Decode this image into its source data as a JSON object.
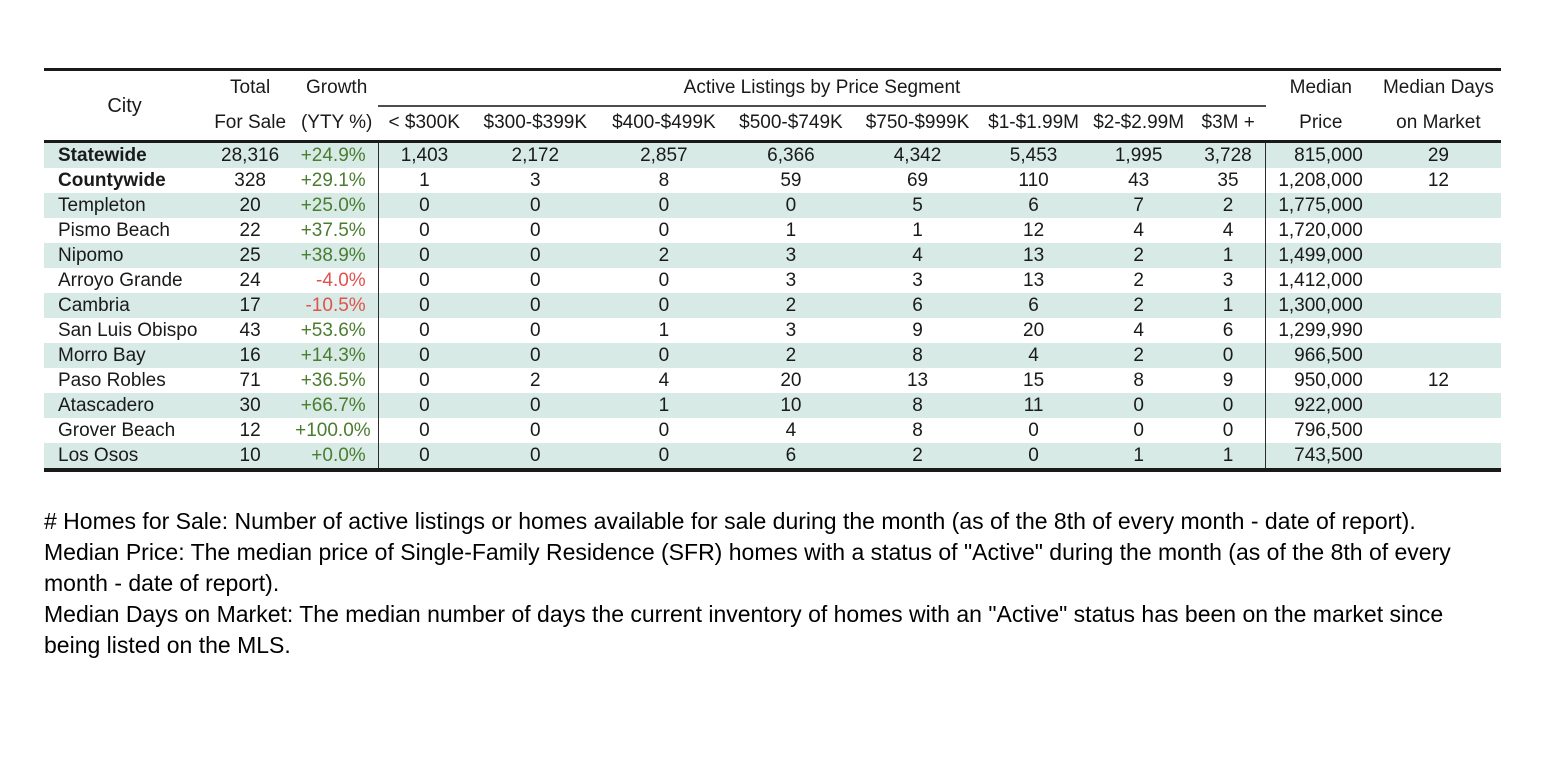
{
  "table": {
    "group_header": "Active Listings by Price Segment",
    "col_city": "City",
    "col_total_line1": "Total",
    "col_total_line2": "For Sale",
    "col_growth_line1": "Growth",
    "col_growth_line2": "(YTY %)",
    "price_segments": [
      "< $300K",
      "$300-$399K",
      "$400-$499K",
      "$500-$749K",
      "$750-$999K",
      "$1-$1.99M",
      "$2-$2.99M",
      "$3M +"
    ],
    "col_median_line1": "Median",
    "col_median_line2": "Price",
    "col_days_line1": "Median Days",
    "col_days_line2": "on Market",
    "rows": [
      {
        "city": "Statewide",
        "bold": true,
        "total": "28,316",
        "growth": "+24.9%",
        "segments": [
          "1,403",
          "2,172",
          "2,857",
          "6,366",
          "4,342",
          "5,453",
          "1,995",
          "3,728"
        ],
        "median_price": "815,000",
        "median_days": "29"
      },
      {
        "city": "Countywide",
        "bold": true,
        "total": "328",
        "growth": "+29.1%",
        "segments": [
          "1",
          "3",
          "8",
          "59",
          "69",
          "110",
          "43",
          "35"
        ],
        "median_price": "1,208,000",
        "median_days": "12"
      },
      {
        "city": "Templeton",
        "bold": false,
        "total": "20",
        "growth": "+25.0%",
        "segments": [
          "0",
          "0",
          "0",
          "0",
          "5",
          "6",
          "7",
          "2"
        ],
        "median_price": "1,775,000",
        "median_days": ""
      },
      {
        "city": "Pismo Beach",
        "bold": false,
        "total": "22",
        "growth": "+37.5%",
        "segments": [
          "0",
          "0",
          "0",
          "1",
          "1",
          "12",
          "4",
          "4"
        ],
        "median_price": "1,720,000",
        "median_days": ""
      },
      {
        "city": "Nipomo",
        "bold": false,
        "total": "25",
        "growth": "+38.9%",
        "segments": [
          "0",
          "0",
          "2",
          "3",
          "4",
          "13",
          "2",
          "1"
        ],
        "median_price": "1,499,000",
        "median_days": ""
      },
      {
        "city": "Arroyo Grande",
        "bold": false,
        "total": "24",
        "growth": "-4.0%",
        "segments": [
          "0",
          "0",
          "0",
          "3",
          "3",
          "13",
          "2",
          "3"
        ],
        "median_price": "1,412,000",
        "median_days": ""
      },
      {
        "city": "Cambria",
        "bold": false,
        "total": "17",
        "growth": "-10.5%",
        "segments": [
          "0",
          "0",
          "0",
          "2",
          "6",
          "6",
          "2",
          "1"
        ],
        "median_price": "1,300,000",
        "median_days": ""
      },
      {
        "city": "San Luis Obispo",
        "bold": false,
        "total": "43",
        "growth": "+53.6%",
        "segments": [
          "0",
          "0",
          "1",
          "3",
          "9",
          "20",
          "4",
          "6"
        ],
        "median_price": "1,299,990",
        "median_days": ""
      },
      {
        "city": "Morro Bay",
        "bold": false,
        "total": "16",
        "growth": "+14.3%",
        "segments": [
          "0",
          "0",
          "0",
          "2",
          "8",
          "4",
          "2",
          "0"
        ],
        "median_price": "966,500",
        "median_days": ""
      },
      {
        "city": "Paso Robles",
        "bold": false,
        "total": "71",
        "growth": "+36.5%",
        "segments": [
          "0",
          "2",
          "4",
          "20",
          "13",
          "15",
          "8",
          "9"
        ],
        "median_price": "950,000",
        "median_days": "12"
      },
      {
        "city": "Atascadero",
        "bold": false,
        "total": "30",
        "growth": "+66.7%",
        "segments": [
          "0",
          "0",
          "1",
          "10",
          "8",
          "11",
          "0",
          "0"
        ],
        "median_price": "922,000",
        "median_days": ""
      },
      {
        "city": "Grover Beach",
        "bold": false,
        "total": "12",
        "growth": "+100.0%",
        "segments": [
          "0",
          "0",
          "0",
          "4",
          "8",
          "0",
          "0",
          "0"
        ],
        "median_price": "796,500",
        "median_days": ""
      },
      {
        "city": "Los Osos",
        "bold": false,
        "total": "10",
        "growth": "+0.0%",
        "segments": [
          "0",
          "0",
          "0",
          "6",
          "2",
          "0",
          "1",
          "1"
        ],
        "median_price": "743,500",
        "median_days": ""
      }
    ]
  },
  "footnotes": [
    "# Homes for Sale: Number of active listings or homes available for sale during the month (as of the 8th of every month - date of report).",
    "Median Price: The median price of Single-Family Residence (SFR) homes with a status of \"Active\" during the month (as of the 8th of every month - date of report).",
    "Median Days on Market: The median number of days the current inventory of homes with an \"Active\" status has been on the market since being listed on the MLS."
  ],
  "colors": {
    "row_stripe": "#d7eae6",
    "growth_positive": "#4a7d2f",
    "growth_negative": "#e0524a",
    "rule": "#1a1a1a"
  }
}
